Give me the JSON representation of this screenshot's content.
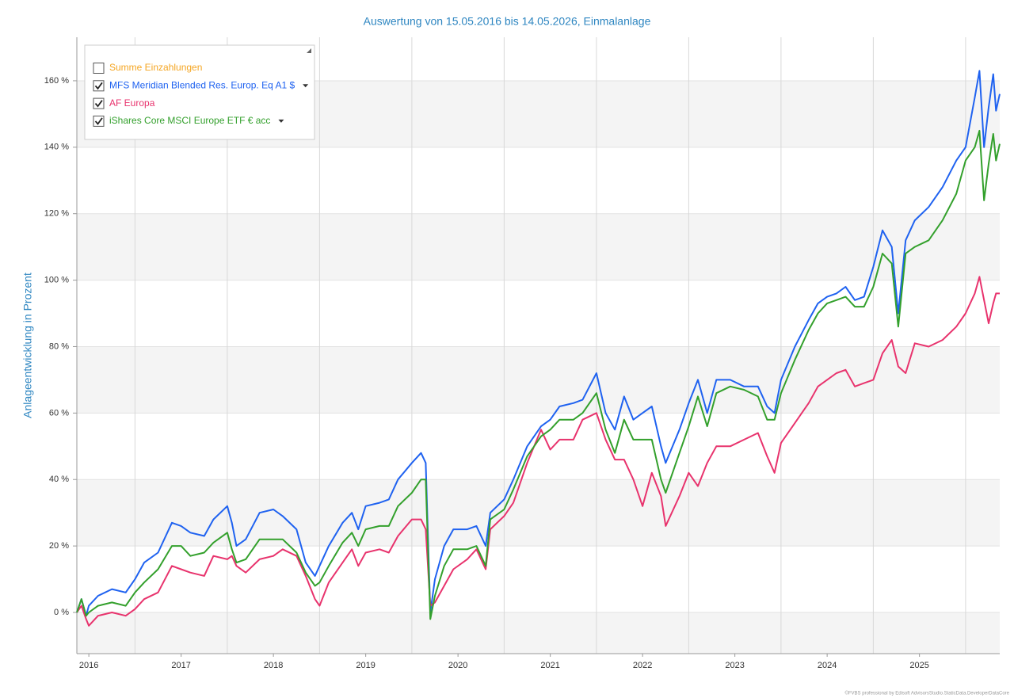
{
  "chart_data": {
    "type": "line",
    "title": "Auswertung von 15.05.2016 bis 14.05.2026, Einmalanlage",
    "ylabel": "Anlageentwicklung  in Prozent",
    "credit": "©FVBS professional by Edisoft AdvisorsStudio.StaticData.DeveloperDataCore",
    "x": [
      2016.37,
      2016.42,
      2016.47,
      2016.5,
      2016.6,
      2016.75,
      2016.9,
      2017.0,
      2017.1,
      2017.25,
      2017.4,
      2017.5,
      2017.6,
      2017.75,
      2017.85,
      2018.0,
      2018.05,
      2018.1,
      2018.2,
      2018.35,
      2018.5,
      2018.6,
      2018.75,
      2018.85,
      2018.95,
      2019.0,
      2019.1,
      2019.25,
      2019.35,
      2019.42,
      2019.5,
      2019.65,
      2019.75,
      2019.85,
      2020.0,
      2020.1,
      2020.15,
      2020.2,
      2020.25,
      2020.35,
      2020.45,
      2020.6,
      2020.7,
      2020.8,
      2020.85,
      2021.0,
      2021.1,
      2021.25,
      2021.4,
      2021.5,
      2021.6,
      2021.75,
      2021.85,
      2022.0,
      2022.1,
      2022.2,
      2022.3,
      2022.4,
      2022.5,
      2022.6,
      2022.7,
      2022.75,
      2022.9,
      2023.0,
      2023.1,
      2023.2,
      2023.3,
      2023.45,
      2023.6,
      2023.75,
      2023.85,
      2023.93,
      2024.0,
      2024.15,
      2024.3,
      2024.4,
      2024.5,
      2024.6,
      2024.7,
      2024.8,
      2024.9,
      2025.0,
      2025.1,
      2025.2,
      2025.27,
      2025.35,
      2025.45,
      2025.6,
      2025.75,
      2025.9,
      2026.0,
      2026.1,
      2026.15,
      2026.2,
      2026.25,
      2026.3,
      2026.33,
      2026.37
    ],
    "series": [
      {
        "name": "MFS Meridian Blended Res. Europ. Eq A1 $",
        "color": "#1f62f0",
        "dropdown": true,
        "values": [
          0,
          4,
          -1,
          2,
          5,
          7,
          6,
          10,
          15,
          18,
          27,
          26,
          24,
          23,
          28,
          32,
          27,
          20,
          22,
          30,
          31,
          29,
          25,
          15,
          11,
          14,
          20,
          27,
          30,
          25,
          32,
          33,
          34,
          40,
          45,
          48,
          45,
          0,
          10,
          20,
          25,
          25,
          26,
          20,
          30,
          34,
          40,
          50,
          56,
          58,
          62,
          63,
          64,
          72,
          60,
          55,
          65,
          58,
          60,
          62,
          50,
          45,
          55,
          63,
          70,
          60,
          70,
          70,
          68,
          68,
          62,
          60,
          70,
          80,
          88,
          93,
          95,
          96,
          98,
          94,
          95,
          104,
          115,
          110,
          90,
          112,
          118,
          122,
          128,
          136,
          140,
          155,
          163,
          140,
          152,
          162,
          151,
          156
        ]
      },
      {
        "name": "AF Europa",
        "color": "#e8336d",
        "dropdown": false,
        "values": [
          0,
          2,
          -2,
          -4,
          -1,
          0,
          -1,
          1,
          4,
          6,
          14,
          13,
          12,
          11,
          17,
          16,
          17,
          14,
          12,
          16,
          17,
          19,
          17,
          11,
          4,
          2,
          9,
          15,
          19,
          14,
          18,
          19,
          18,
          23,
          28,
          28,
          25,
          2,
          3,
          8,
          13,
          16,
          19,
          13,
          25,
          29,
          33,
          45,
          55,
          49,
          52,
          52,
          58,
          60,
          52,
          46,
          46,
          40,
          32,
          42,
          35,
          26,
          35,
          42,
          38,
          45,
          50,
          50,
          52,
          54,
          47,
          42,
          51,
          57,
          63,
          68,
          70,
          72,
          73,
          68,
          69,
          70,
          78,
          82,
          74,
          72,
          81,
          80,
          82,
          86,
          90,
          96,
          101,
          94,
          87,
          93,
          96,
          96
        ]
      },
      {
        "name": "iShares Core MSCI Europe ETF € acc",
        "color": "#33a02c",
        "dropdown": true,
        "values": [
          0,
          4,
          -1,
          0,
          2,
          3,
          2,
          6,
          9,
          13,
          20,
          20,
          17,
          18,
          21,
          24,
          19,
          15,
          16,
          22,
          22,
          22,
          18,
          12,
          8,
          9,
          14,
          21,
          24,
          20,
          25,
          26,
          26,
          32,
          36,
          40,
          40,
          -2,
          5,
          14,
          19,
          19,
          20,
          14,
          28,
          31,
          37,
          47,
          53,
          55,
          58,
          58,
          60,
          66,
          55,
          48,
          58,
          52,
          52,
          52,
          40,
          36,
          48,
          56,
          65,
          56,
          66,
          68,
          67,
          65,
          58,
          58,
          66,
          76,
          85,
          90,
          93,
          94,
          95,
          92,
          92,
          98,
          108,
          105,
          86,
          108,
          110,
          112,
          118,
          126,
          136,
          140,
          145,
          124,
          135,
          144,
          136,
          141
        ]
      }
    ],
    "unchecked_entries": [
      {
        "name": "Summe Einzahlungen",
        "color": "#f5a623"
      }
    ],
    "xlim": [
      2016.37,
      2026.37
    ],
    "xticks": [
      {
        "value": 2016.5,
        "label": "2016"
      },
      {
        "value": 2017.5,
        "label": "2017"
      },
      {
        "value": 2018.5,
        "label": "2018"
      },
      {
        "value": 2019.5,
        "label": "2019"
      },
      {
        "value": 2020.5,
        "label": "2020"
      },
      {
        "value": 2021.5,
        "label": "2021"
      },
      {
        "value": 2022.5,
        "label": "2022"
      },
      {
        "value": 2023.5,
        "label": "2023"
      },
      {
        "value": 2024.5,
        "label": "2024"
      },
      {
        "value": 2025.5,
        "label": "2025"
      }
    ],
    "xgrid": [
      2017,
      2018,
      2019,
      2020,
      2021,
      2022,
      2023,
      2024,
      2025,
      2026
    ],
    "ylim": [
      -12.4,
      173.1
    ],
    "yticks": [
      {
        "value": 0,
        "label": "0 %"
      },
      {
        "value": 20,
        "label": "20 %"
      },
      {
        "value": 40,
        "label": "40 %"
      },
      {
        "value": 60,
        "label": "60 %"
      },
      {
        "value": 80,
        "label": "80 %"
      },
      {
        "value": 100,
        "label": "100 %"
      },
      {
        "value": 120,
        "label": "120 %"
      },
      {
        "value": 140,
        "label": "140 %"
      },
      {
        "value": 160,
        "label": "160 %"
      }
    ],
    "bands": true,
    "legend": "upper left"
  }
}
